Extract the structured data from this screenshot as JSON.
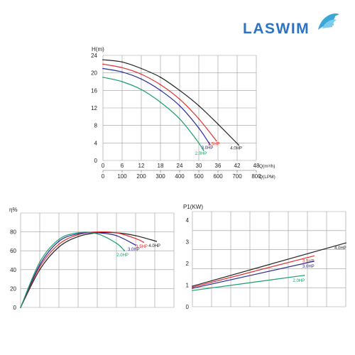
{
  "brand": {
    "name": "LASWIM",
    "color": "#2a73c8",
    "shell_color": "#3aa7d8"
  },
  "chart_data": [
    {
      "type": "line",
      "ylabel": "H(m)",
      "xlabel": "Q(m³/h)",
      "xlabel2": "Q(LPM)",
      "x_ticks": [
        0,
        6,
        12,
        18,
        24,
        30,
        36,
        42,
        48
      ],
      "x2_ticks": [
        0,
        100,
        200,
        300,
        400,
        500,
        600,
        700,
        800
      ],
      "y_ticks": [
        0,
        4,
        8,
        12,
        16,
        20,
        24
      ],
      "xlim": [
        0,
        48
      ],
      "ylim": [
        0,
        24
      ],
      "grid": true,
      "series": [
        {
          "name": "4.0HP",
          "color": "#222222",
          "x": [
            0,
            6,
            12,
            18,
            24,
            30,
            36,
            42.5
          ],
          "y": [
            23,
            22.5,
            21,
            19,
            16,
            12.5,
            8.3,
            3.5
          ]
        },
        {
          "name": "3.5HP",
          "color": "#e23030",
          "x": [
            0,
            6,
            12,
            18,
            24,
            30,
            35.5
          ],
          "y": [
            22,
            21.2,
            19.7,
            17.3,
            14,
            9.5,
            4.5
          ]
        },
        {
          "name": "3.0HP",
          "color": "#2a2a9a",
          "x": [
            0,
            6,
            12,
            18,
            24,
            30,
            33.5
          ],
          "y": [
            21,
            20.2,
            18.6,
            16,
            12.5,
            7.4,
            3.6
          ]
        },
        {
          "name": "2.0HP",
          "color": "#18a068",
          "x": [
            0,
            6,
            12,
            18,
            24,
            29,
            31.5
          ],
          "y": [
            19,
            18,
            16.2,
            13.3,
            9.5,
            5,
            2.3
          ]
        }
      ]
    },
    {
      "type": "line",
      "ylabel": "η%",
      "y_ticks": [
        0,
        20,
        40,
        60,
        80
      ],
      "ylim": [
        0,
        100
      ],
      "xlim": [
        0,
        48
      ],
      "grid": true,
      "series": [
        {
          "name": "4.0HP",
          "color": "#222222",
          "x": [
            0,
            6,
            12,
            18,
            24,
            30,
            36,
            42.5
          ],
          "y": [
            0,
            40,
            64,
            75,
            79,
            79,
            76,
            70
          ]
        },
        {
          "name": "3.5HP",
          "color": "#e23030",
          "x": [
            0,
            6,
            12,
            18,
            24,
            30,
            36,
            38.5
          ],
          "y": [
            0,
            43,
            67,
            77,
            80,
            79,
            73,
            69
          ]
        },
        {
          "name": "3.0HP",
          "color": "#2a2a9a",
          "x": [
            0,
            6,
            12,
            18,
            24,
            30,
            36
          ],
          "y": [
            0,
            45,
            70,
            78,
            79,
            76,
            66
          ]
        },
        {
          "name": "2.0HP",
          "color": "#18a068",
          "x": [
            0,
            6,
            12,
            18,
            24,
            30,
            32.5
          ],
          "y": [
            0,
            48,
            72,
            79,
            78,
            68,
            60
          ]
        }
      ]
    },
    {
      "type": "line",
      "ylabel": "P1(KW)",
      "y_ticks": [
        0,
        1,
        2,
        3,
        4
      ],
      "ylim": [
        0,
        4.4
      ],
      "xlim": [
        0,
        48
      ],
      "grid": true,
      "series": [
        {
          "name": "4.0HP",
          "color": "#222222",
          "x": [
            0,
            48
          ],
          "y": [
            0.95,
            2.95
          ]
        },
        {
          "name": "3.5HP",
          "color": "#e23030",
          "x": [
            0,
            38
          ],
          "y": [
            0.9,
            2.35
          ]
        },
        {
          "name": "3.0HP",
          "color": "#2a2a9a",
          "x": [
            0,
            38
          ],
          "y": [
            0.85,
            2.1
          ]
        },
        {
          "name": "2.0HP",
          "color": "#18a068",
          "x": [
            0,
            35
          ],
          "y": [
            0.75,
            1.45
          ]
        }
      ]
    }
  ]
}
